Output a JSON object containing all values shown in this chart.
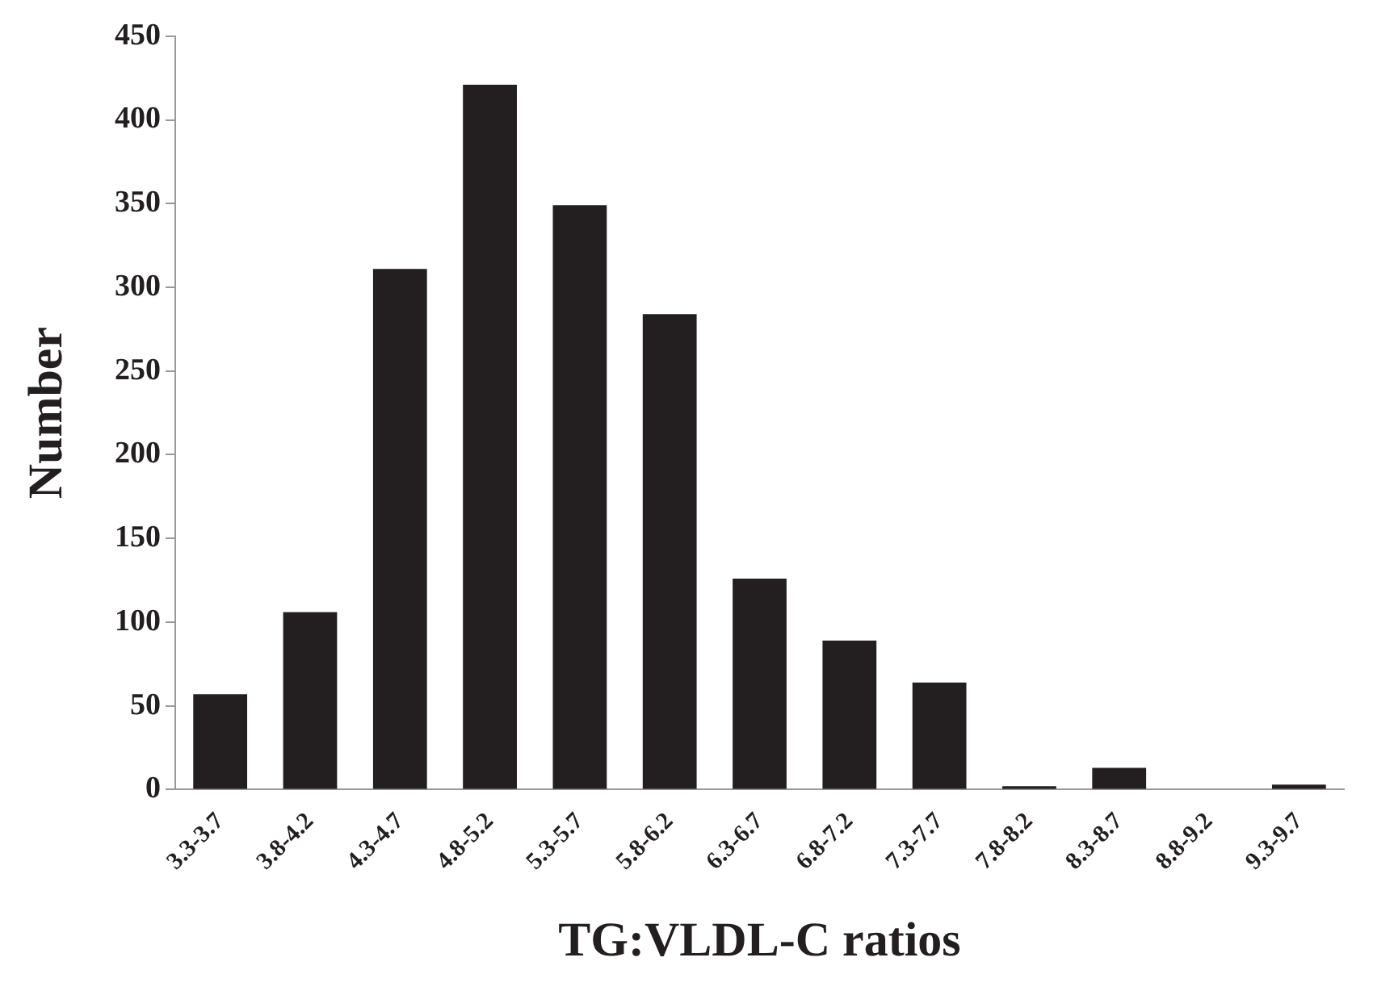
{
  "chart_data": {
    "type": "bar",
    "xlabel": "TG:VLDL-C ratios",
    "ylabel": "Number",
    "categories": [
      "3.3-3.7",
      "3.8-4.2",
      "4.3-4.7",
      "4.8-5.2",
      "5.3-5.7",
      "5.8-6.2",
      "6.3-6.7",
      "6.8-7.2",
      "7.3-7.7",
      "7.8-8.2",
      "8.3-8.7",
      "8.8-9.2",
      "9.3-9.7"
    ],
    "values": [
      57,
      106,
      311,
      421,
      349,
      284,
      126,
      89,
      64,
      2,
      13,
      0,
      3
    ],
    "color": "#231f20",
    "ylim": [
      0,
      450
    ],
    "yticks": [
      0,
      50,
      100,
      150,
      200,
      250,
      300,
      350,
      400,
      450
    ],
    "grid": false,
    "legend": false
  }
}
